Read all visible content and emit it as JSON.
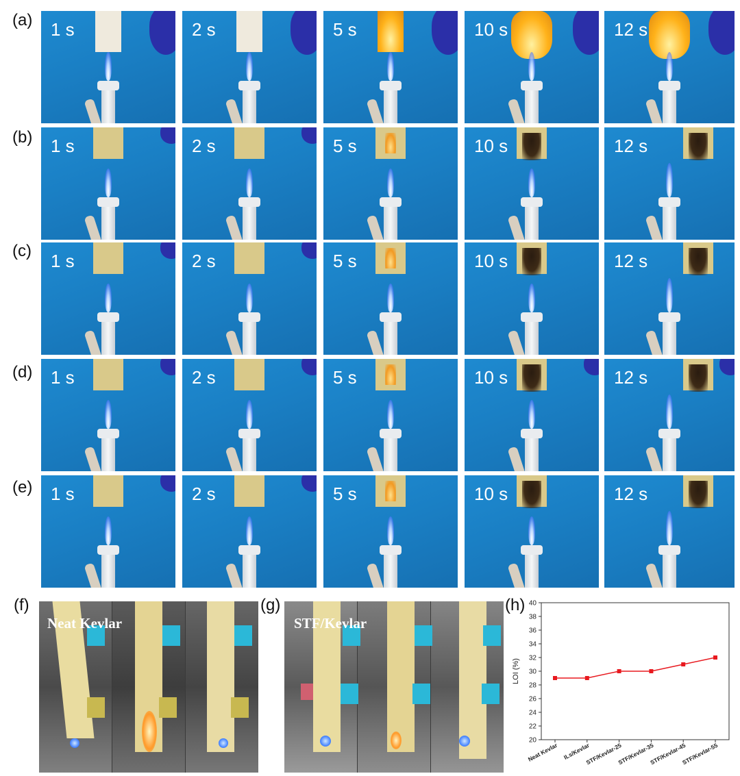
{
  "rows": [
    {
      "label": "(a)",
      "times": [
        "1 s",
        "2 s",
        "5 s",
        "10 s",
        "12 s"
      ]
    },
    {
      "label": "(b)",
      "times": [
        "1 s",
        "2 s",
        "5 s",
        "10 s",
        "12 s"
      ]
    },
    {
      "label": "(c)",
      "times": [
        "1 s",
        "2 s",
        "5 s",
        "10 s",
        "12 s"
      ]
    },
    {
      "label": "(d)",
      "times": [
        "1 s",
        "2 s",
        "5 s",
        "10 s",
        "12 s"
      ]
    },
    {
      "label": "(e)",
      "times": [
        "1 s",
        "2 s",
        "5 s",
        "10 s",
        "12 s"
      ]
    }
  ],
  "panel_f": {
    "label": "(f)",
    "title": "Neat Kevlar"
  },
  "panel_g": {
    "label": "(g)",
    "title": "STF/Kevlar"
  },
  "panel_h": {
    "label": "(h)"
  },
  "colors": {
    "accent": "#e8191f",
    "background_blue": "#1a7fc4"
  },
  "chart_data": {
    "type": "line",
    "categories": [
      "Neat Kevlar",
      "ILs/Kevlar",
      "STF/Kevlar-25",
      "STF/Kevlar-35",
      "STF/Kevlar-45",
      "STF/Kevlar-55"
    ],
    "values": [
      29,
      29,
      30,
      30,
      31,
      32
    ],
    "ylabel": "LOI (%)",
    "ylim": [
      20,
      40
    ],
    "yticks": [
      20,
      22,
      24,
      26,
      28,
      30,
      32,
      34,
      36,
      38,
      40
    ],
    "marker": "square",
    "color": "#e8191f",
    "grid": false
  }
}
